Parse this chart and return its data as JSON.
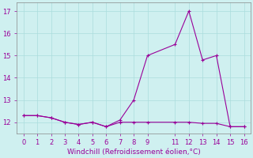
{
  "xlabel": "Windchill (Refroidissement éolien,°C)",
  "x": [
    0,
    1,
    2,
    3,
    4,
    5,
    6,
    7,
    8,
    9,
    11,
    12,
    13,
    14,
    15,
    16
  ],
  "line1": [
    12.3,
    12.3,
    12.2,
    12.0,
    11.9,
    12.0,
    11.8,
    12.1,
    13.0,
    15.0,
    15.5,
    17.0,
    14.8,
    15.0,
    11.8,
    11.8
  ],
  "line2": [
    12.3,
    12.3,
    12.2,
    12.0,
    11.9,
    12.0,
    11.8,
    12.0,
    12.0,
    12.0,
    12.0,
    12.0,
    11.95,
    11.95,
    11.8,
    11.8
  ],
  "line_color": "#990099",
  "bg_color": "#cff0f0",
  "grid_color": "#aadddd",
  "ylim": [
    11.5,
    17.4
  ],
  "yticks": [
    12,
    13,
    14,
    15,
    16,
    17
  ],
  "xlim": [
    -0.5,
    16.5
  ],
  "xticks": [
    0,
    1,
    2,
    3,
    4,
    5,
    6,
    7,
    8,
    9,
    11,
    12,
    13,
    14,
    15,
    16
  ]
}
